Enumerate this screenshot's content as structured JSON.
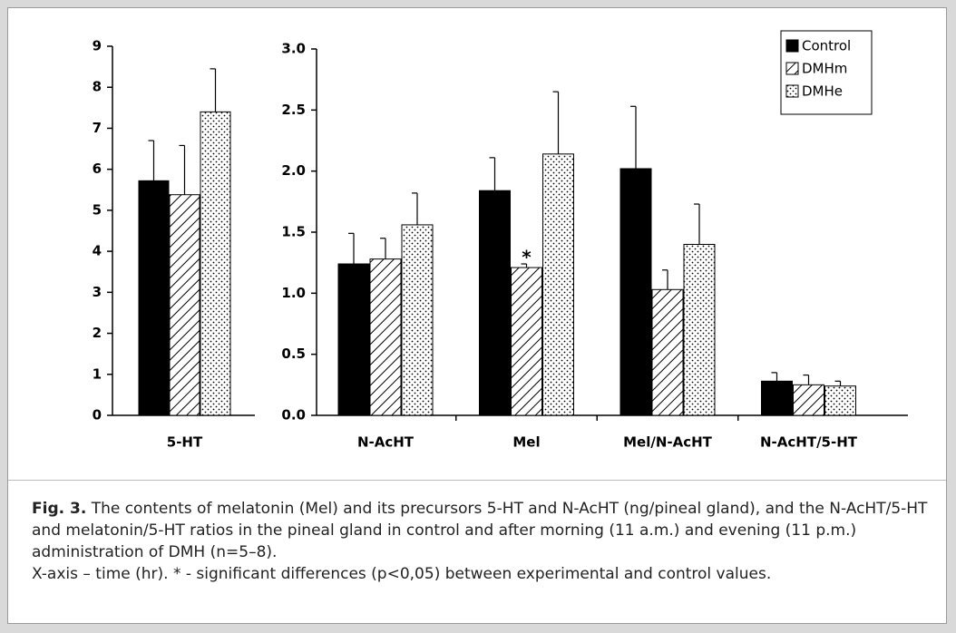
{
  "chart_data": [
    {
      "type": "bar",
      "categories": [
        "5-HT"
      ],
      "series": [
        {
          "pattern": "solid",
          "color": "#000000",
          "values": [
            5.72
          ],
          "errors": [
            0.98
          ]
        },
        {
          "pattern": "hatch",
          "color": "#000000",
          "values": [
            5.38
          ],
          "errors": [
            1.2
          ]
        },
        {
          "pattern": "dots",
          "color": "#000000",
          "values": [
            7.4
          ],
          "errors": [
            1.05
          ]
        }
      ],
      "ylim": [
        0,
        9
      ],
      "yticks": [
        0,
        1,
        2,
        3,
        4,
        5,
        6,
        7,
        8,
        9
      ]
    },
    {
      "type": "bar",
      "categories": [
        "N-AcHT",
        "Mel",
        "Mel/N-AcHT",
        "N-AcHT/5-HT"
      ],
      "series": [
        {
          "name": "Control",
          "pattern": "solid",
          "color": "#000000",
          "values": [
            1.24,
            1.84,
            2.02,
            0.28
          ],
          "errors": [
            0.25,
            0.27,
            0.51,
            0.07
          ]
        },
        {
          "name": "DMHm",
          "pattern": "hatch",
          "color": "#000000",
          "values": [
            1.28,
            1.21,
            1.03,
            0.25
          ],
          "errors": [
            0.17,
            0.03,
            0.16,
            0.08
          ]
        },
        {
          "name": "DMHe",
          "pattern": "dots",
          "color": "#000000",
          "values": [
            1.56,
            2.14,
            1.4,
            0.24
          ],
          "errors": [
            0.26,
            0.51,
            0.33,
            0.04
          ]
        }
      ],
      "ylim": [
        0,
        3
      ],
      "yticks": [
        {
          "value": 0,
          "label": "0.0"
        },
        0.5,
        {
          "value": 1,
          "label": "1.0"
        },
        1.5,
        {
          "value": 2,
          "label": "2.0"
        },
        2.5,
        {
          "value": 3,
          "label": "3.0"
        }
      ],
      "legend": "top-right",
      "annotations": [
        {
          "text": "*",
          "category": 1,
          "series": 1
        }
      ]
    }
  ],
  "caption": {
    "label": "Fig. 3.",
    "text": "The contents of melatonin (Mel) and its precursors 5-HT and N-AcHT (ng/pineal gland), and the N-AcHT/5-HT and melatonin/5-HT ratios in the pineal gland in control and after morning (11 a.m.) and evening (11 p.m.) administration of DMH (n=5–8).",
    "note": "X-axis – time (hr). * - significant differences (p<0,05) between experimental and control values."
  }
}
